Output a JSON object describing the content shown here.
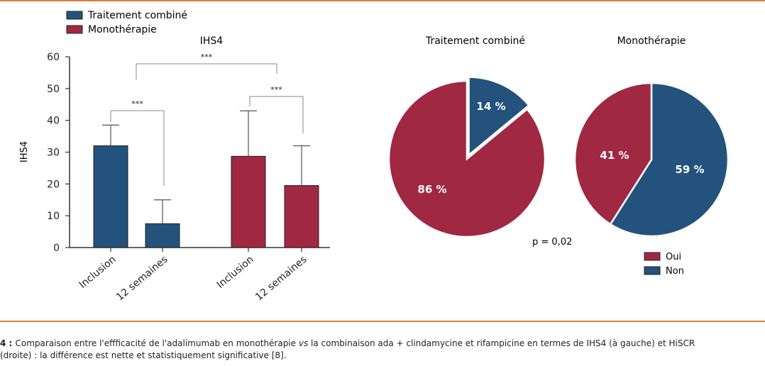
{
  "colors": {
    "combined": "#23527c",
    "mono": "#a02842",
    "axis": "#333333",
    "rule": "#e07a3c"
  },
  "chart_data": [
    {
      "type": "bar",
      "title": "IHS4",
      "ylabel": "IHS4",
      "ylim": [
        0,
        60
      ],
      "yticks": [
        0,
        10,
        20,
        30,
        40,
        50,
        60
      ],
      "legend": {
        "placement": "top-left",
        "entries": [
          "Traitement combiné",
          "Monothérapie"
        ]
      },
      "groups": [
        {
          "series": "Traitement combiné",
          "categories": [
            "Inclusion",
            "12 semaines"
          ],
          "values": [
            32,
            7.5
          ],
          "errors": [
            38.5,
            15
          ]
        },
        {
          "series": "Monothérapie",
          "categories": [
            "Inclusion",
            "12 semaines"
          ],
          "values": [
            28.7,
            19.5
          ],
          "errors": [
            43,
            32
          ]
        }
      ],
      "significance": [
        "***",
        "***",
        "***"
      ]
    },
    {
      "type": "pie",
      "title": "Traitement combiné",
      "slices": [
        {
          "name": "Oui",
          "value": 86,
          "label": "86 %"
        },
        {
          "name": "Non",
          "value": 14,
          "label": "14 %"
        }
      ]
    },
    {
      "type": "pie",
      "title": "Monothérapie",
      "slices": [
        {
          "name": "Oui",
          "value": 41,
          "label": "41 %"
        },
        {
          "name": "Non",
          "value": 59,
          "label": "59 %"
        }
      ]
    }
  ],
  "pie_legend": [
    "Oui",
    "Non"
  ],
  "p_value": "p = 0,02",
  "caption": {
    "lead": "4 : ",
    "part1": "Comparaison entre l'effficacité de l'adalimumab en monothérapie ",
    "vs": "vs",
    "part2": " la combinaison ada + clindamycine et rifampicine en termes de IHS4 (à gauche) et HiSCR",
    "line2": "(droite) : la différence est nette et statistiquement significative [8]."
  }
}
